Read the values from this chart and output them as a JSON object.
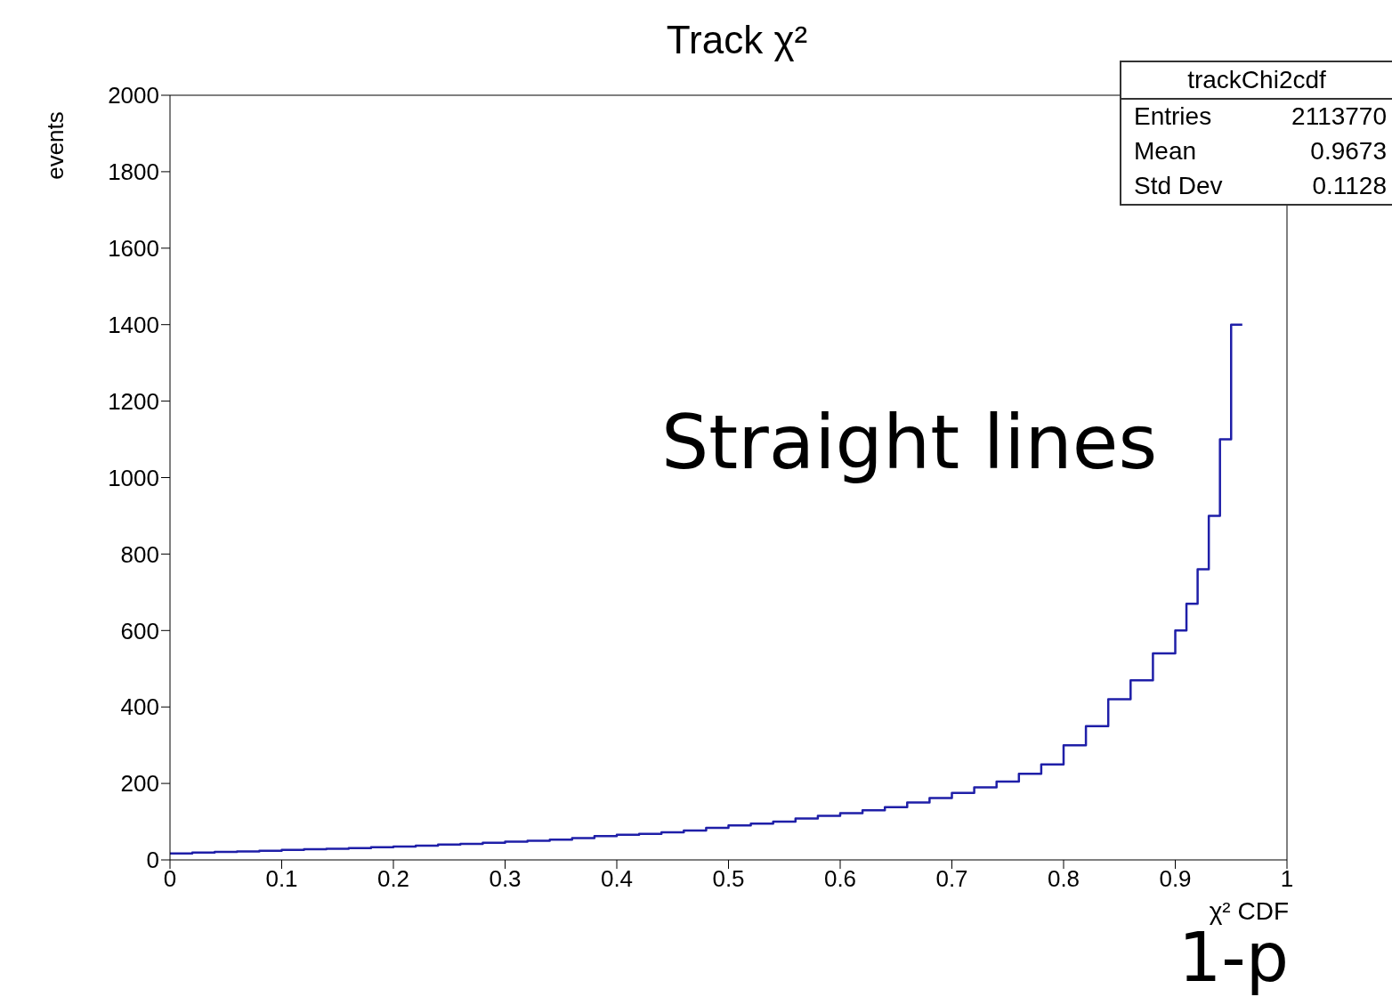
{
  "chart_data": {
    "type": "histogram",
    "title": "Track χ²",
    "xlabel": "χ² CDF",
    "ylabel": "events",
    "annotations": [
      "Straight lines",
      "1-p",
      "trackChi2cdf",
      "Entries",
      "2113770",
      "Mean",
      "0.9673",
      "Std Dev",
      "0.1128"
    ],
    "bins": [
      0,
      0.02,
      0.04,
      0.06,
      0.08,
      0.1,
      0.12,
      0.14,
      0.16,
      0.18,
      0.2,
      0.22,
      0.24,
      0.26,
      0.28,
      0.3,
      0.32,
      0.34,
      0.36,
      0.38,
      0.4,
      0.42,
      0.44,
      0.46,
      0.48,
      0.5,
      0.52,
      0.54,
      0.56,
      0.58,
      0.6,
      0.62,
      0.64,
      0.66,
      0.68,
      0.7,
      0.72,
      0.74,
      0.76,
      0.78,
      0.8,
      0.82,
      0.84,
      0.86,
      0.88,
      0.9,
      0.91,
      0.92,
      0.93,
      0.94,
      0.95,
      0.96
    ],
    "values": [
      17,
      19,
      21,
      22,
      24,
      26,
      28,
      29,
      31,
      33,
      35,
      37,
      40,
      42,
      45,
      48,
      50,
      53,
      57,
      62,
      66,
      68,
      72,
      77,
      84,
      90,
      95,
      100,
      108,
      115,
      122,
      130,
      138,
      150,
      162,
      175,
      190,
      205,
      225,
      250,
      300,
      350,
      420,
      470,
      540,
      600,
      670,
      760,
      900,
      1100,
      1400
    ],
    "color": "#1f1fa8",
    "xlim": [
      0,
      1
    ],
    "ylim": [
      0,
      2000
    ],
    "xticks": [
      0,
      0.1,
      0.2,
      0.3,
      0.4,
      0.5,
      0.6,
      0.7,
      0.8,
      0.9,
      1
    ],
    "yticks": [
      0,
      200,
      400,
      600,
      800,
      1000,
      1200,
      1400,
      1600,
      1800,
      2000
    ]
  }
}
